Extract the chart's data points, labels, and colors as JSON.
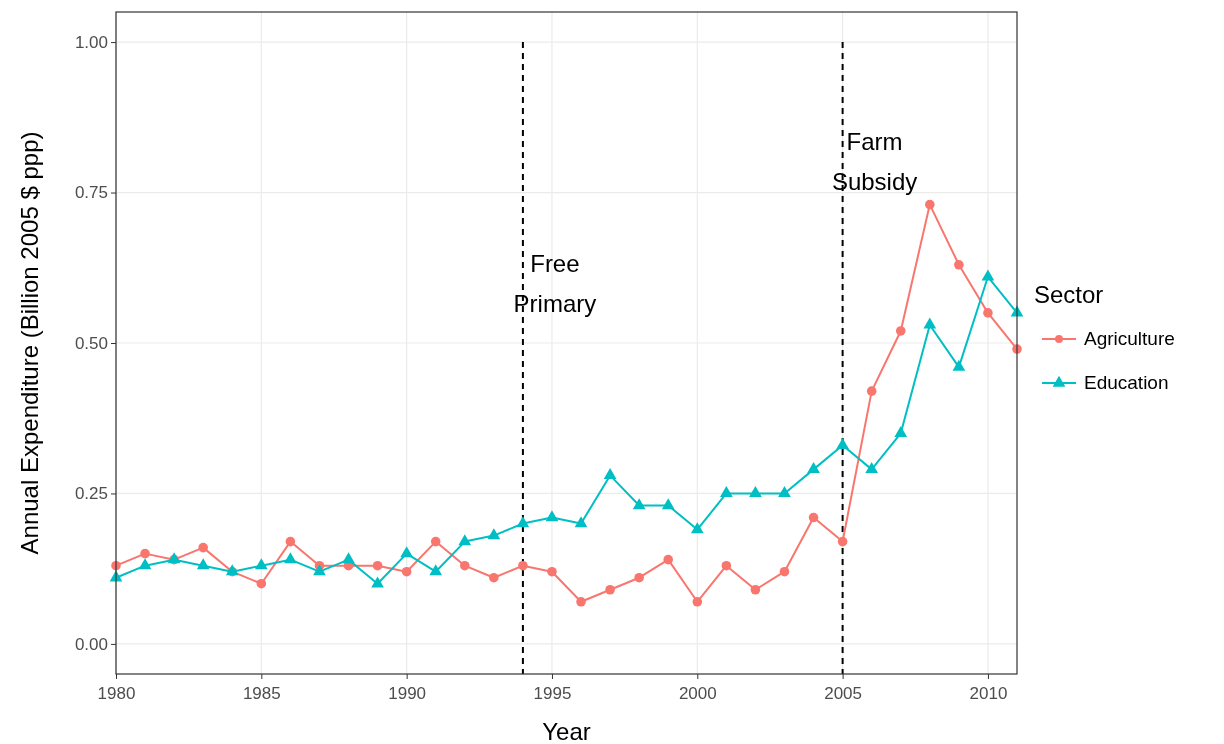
{
  "chart_data": {
    "type": "line",
    "xlabel": "Year",
    "ylabel": "Annual Expenditure (Billion 2005 $ ppp)",
    "legend_title": "Sector",
    "legend": "right",
    "grid": true,
    "x": [
      1980,
      1981,
      1982,
      1983,
      1984,
      1985,
      1986,
      1987,
      1988,
      1989,
      1990,
      1991,
      1992,
      1993,
      1994,
      1995,
      1996,
      1997,
      1998,
      1999,
      2000,
      2001,
      2002,
      2003,
      2004,
      2005,
      2006,
      2007,
      2008,
      2009,
      2010,
      2011
    ],
    "xlim": [
      1980,
      2011
    ],
    "xticks": [
      1980,
      1985,
      1990,
      1995,
      2000,
      2005,
      2010
    ],
    "ylim": [
      -0.05,
      1.05
    ],
    "yticks": [
      {
        "value": 0,
        "label": "0.00"
      },
      {
        "value": 0.25,
        "label": "0.25"
      },
      {
        "value": 0.5,
        "label": "0.50"
      },
      {
        "value": 0.75,
        "label": "0.75"
      },
      {
        "value": 1,
        "label": "1.00"
      }
    ],
    "series": [
      {
        "name": "Agriculture",
        "color": "#f8766d",
        "marker": "circle",
        "values": [
          0.13,
          0.15,
          0.14,
          0.16,
          0.12,
          0.1,
          0.17,
          0.13,
          0.13,
          0.13,
          0.12,
          0.17,
          0.13,
          0.11,
          0.13,
          0.12,
          0.07,
          0.09,
          0.11,
          0.14,
          0.07,
          0.13,
          0.09,
          0.12,
          0.21,
          0.17,
          0.42,
          0.52,
          0.73,
          0.63,
          0.55,
          0.49
        ]
      },
      {
        "name": "Education",
        "color": "#00bfc4",
        "marker": "triangle",
        "values": [
          0.11,
          0.13,
          0.14,
          0.13,
          0.12,
          0.13,
          0.14,
          0.12,
          0.14,
          0.1,
          0.15,
          0.12,
          0.17,
          0.18,
          0.2,
          0.21,
          0.2,
          0.28,
          0.23,
          0.23,
          0.19,
          0.25,
          0.25,
          0.25,
          0.29,
          0.33,
          0.29,
          0.35,
          0.53,
          0.46,
          0.61,
          0.55
        ]
      }
    ],
    "ref_lines": [
      {
        "axis": "x",
        "value": 1994,
        "label": "Free Primary",
        "color": "#000000",
        "line_style": "dashed"
      },
      {
        "axis": "x",
        "value": 2005,
        "label": "Farm Subsidy",
        "color": "#000000",
        "line_style": "dashed"
      }
    ]
  }
}
